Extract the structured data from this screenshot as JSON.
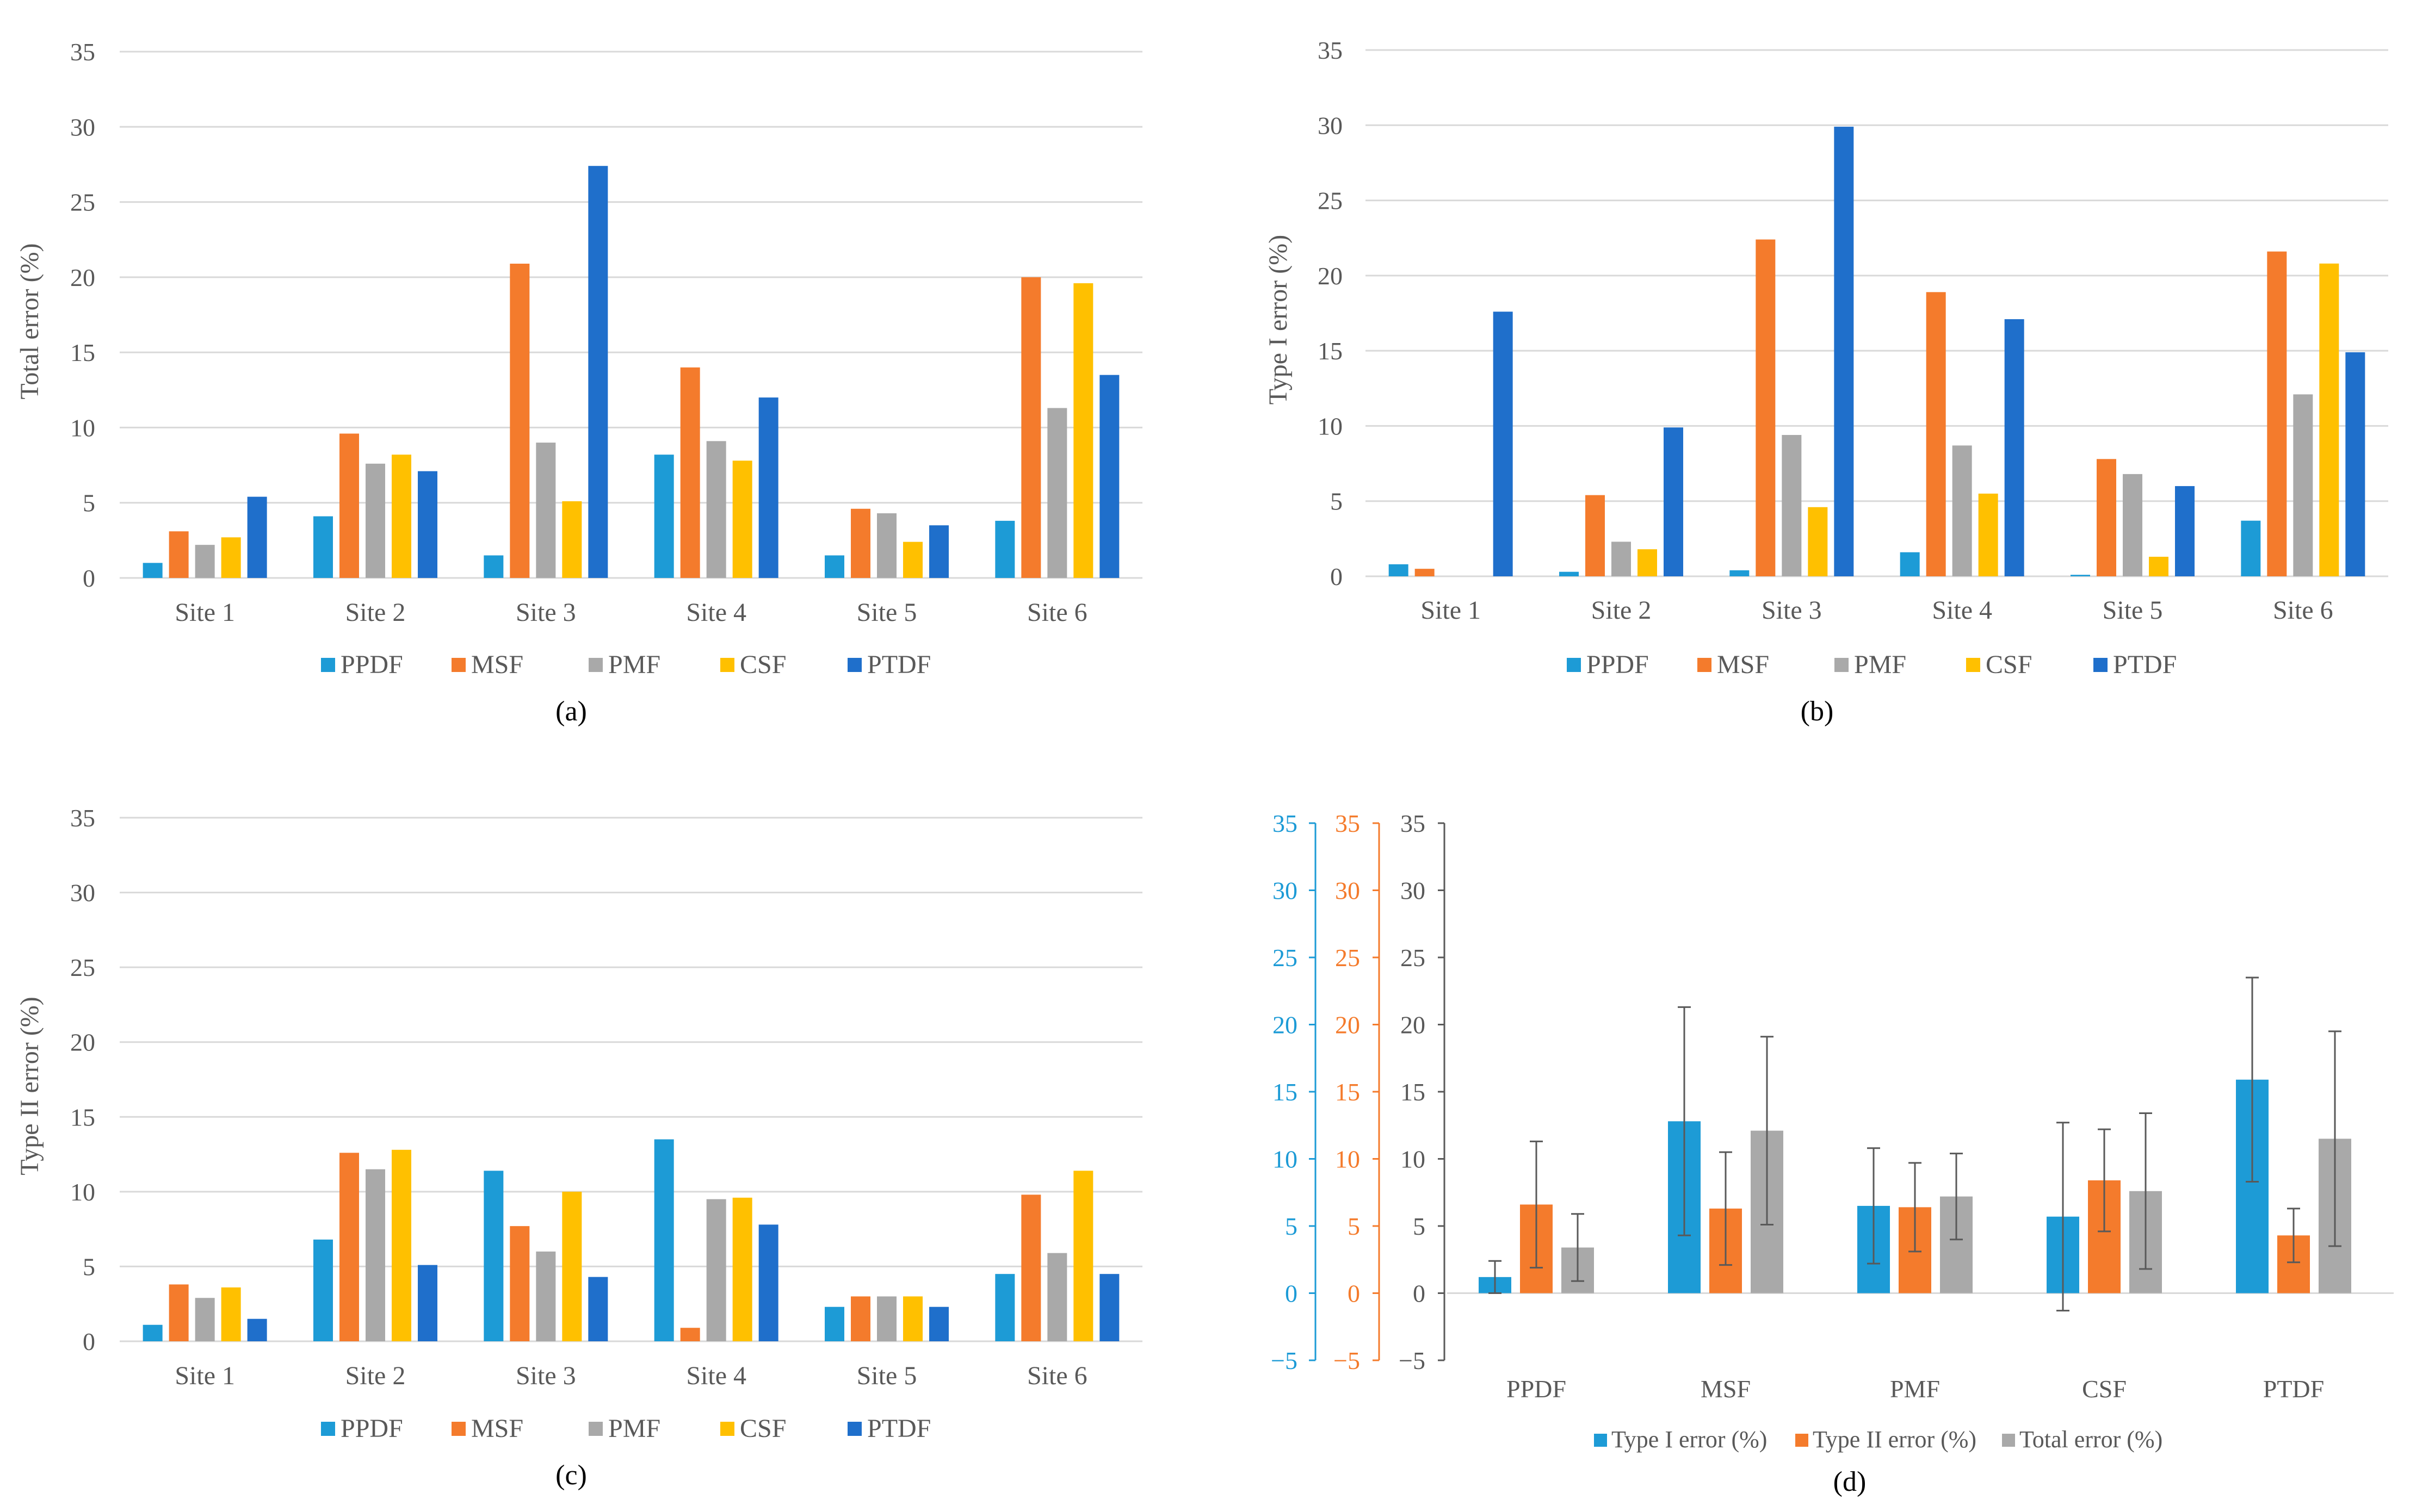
{
  "colors": {
    "PPDF": "#1d9bd6",
    "MSF": "#f47b2c",
    "PMF": "#a9a9a9",
    "CSF": "#ffc000",
    "PTDF": "#1f6fcb",
    "grid": "#d9d9d9",
    "axis_text": "#595959",
    "error_bar": "#595959"
  },
  "chart_data": [
    {
      "type": "bar",
      "panel_label": "(a)",
      "ylabel": "Total error (%)",
      "ylim": [
        0,
        35
      ],
      "yticks": [
        "0",
        "5",
        "10",
        "15",
        "20",
        "25",
        "30",
        "35"
      ],
      "grid": true,
      "legend_position": "bottom",
      "categories": [
        "Site 1",
        "Site 2",
        "Site 3",
        "Site 4",
        "Site 5",
        "Site 6"
      ],
      "series": [
        {
          "name": "PPDF",
          "values": [
            1.0,
            4.1,
            1.5,
            8.2,
            1.5,
            3.8
          ]
        },
        {
          "name": "MSF",
          "values": [
            3.1,
            9.6,
            20.9,
            14.0,
            4.6,
            20.0
          ]
        },
        {
          "name": "PMF",
          "values": [
            2.2,
            7.6,
            9.0,
            9.1,
            4.3,
            11.3
          ]
        },
        {
          "name": "CSF",
          "values": [
            2.7,
            8.2,
            5.1,
            7.8,
            2.4,
            19.6
          ]
        },
        {
          "name": "PTDF",
          "values": [
            5.4,
            7.1,
            27.4,
            12.0,
            3.5,
            13.5
          ]
        }
      ]
    },
    {
      "type": "bar",
      "panel_label": "(b)",
      "ylabel": "Type I error (%)",
      "ylim": [
        0,
        35
      ],
      "yticks": [
        "0",
        "5",
        "10",
        "15",
        "20",
        "25",
        "30",
        "35"
      ],
      "grid": true,
      "legend_position": "bottom",
      "categories": [
        "Site 1",
        "Site 2",
        "Site 3",
        "Site 4",
        "Site 5",
        "Site 6"
      ],
      "series": [
        {
          "name": "PPDF",
          "values": [
            0.8,
            0.3,
            0.4,
            1.6,
            0.1,
            3.7
          ]
        },
        {
          "name": "MSF",
          "values": [
            0.5,
            5.4,
            22.4,
            18.9,
            7.8,
            21.6
          ]
        },
        {
          "name": "PMF",
          "values": [
            0.0,
            2.3,
            9.4,
            8.7,
            6.8,
            12.1
          ]
        },
        {
          "name": "CSF",
          "values": [
            0.0,
            1.8,
            4.6,
            5.5,
            1.3,
            20.8
          ]
        },
        {
          "name": "PTDF",
          "values": [
            17.6,
            9.9,
            29.9,
            17.1,
            6.0,
            14.9
          ]
        }
      ]
    },
    {
      "type": "bar",
      "panel_label": "(c)",
      "ylabel": "Type II error (%)",
      "ylim": [
        0,
        35
      ],
      "yticks": [
        "0",
        "5",
        "10",
        "15",
        "20",
        "25",
        "30",
        "35"
      ],
      "grid": true,
      "legend_position": "bottom",
      "categories": [
        "Site 1",
        "Site 2",
        "Site 3",
        "Site 4",
        "Site 5",
        "Site 6"
      ],
      "series": [
        {
          "name": "PPDF",
          "values": [
            1.1,
            6.8,
            11.4,
            13.5,
            2.3,
            4.5
          ]
        },
        {
          "name": "MSF",
          "values": [
            3.8,
            12.6,
            7.7,
            0.9,
            3.0,
            9.8
          ]
        },
        {
          "name": "PMF",
          "values": [
            2.9,
            11.5,
            6.0,
            9.5,
            3.0,
            5.9
          ]
        },
        {
          "name": "CSF",
          "values": [
            3.6,
            12.8,
            10.0,
            9.6,
            3.0,
            11.4
          ]
        },
        {
          "name": "PTDF",
          "values": [
            1.5,
            5.1,
            4.3,
            7.8,
            2.3,
            4.5
          ]
        }
      ]
    },
    {
      "type": "bar",
      "panel_label": "(d)",
      "ylabel": "",
      "ylim": [
        -5,
        35
      ],
      "yticks": [
        "−5",
        "0",
        "5",
        "10",
        "15",
        "20",
        "25",
        "30",
        "35"
      ],
      "grid": false,
      "legend_position": "bottom",
      "error_bars": true,
      "categories": [
        "PPDF",
        "MSF",
        "PMF",
        "CSF",
        "PTDF"
      ],
      "series": [
        {
          "name": "Type I error (%)",
          "values": [
            1.2,
            12.8,
            6.5,
            5.7,
            15.9
          ],
          "errors": [
            1.2,
            8.5,
            4.3,
            7.0,
            7.6
          ]
        },
        {
          "name": "Type II error (%)",
          "values": [
            6.6,
            6.3,
            6.4,
            8.4,
            4.3
          ],
          "errors": [
            4.7,
            4.2,
            3.3,
            3.8,
            2.0
          ]
        },
        {
          "name": "Total error (%)",
          "values": [
            3.4,
            12.1,
            7.2,
            7.6,
            11.5
          ],
          "errors": [
            2.5,
            7.0,
            3.2,
            5.8,
            8.0
          ]
        }
      ]
    }
  ]
}
